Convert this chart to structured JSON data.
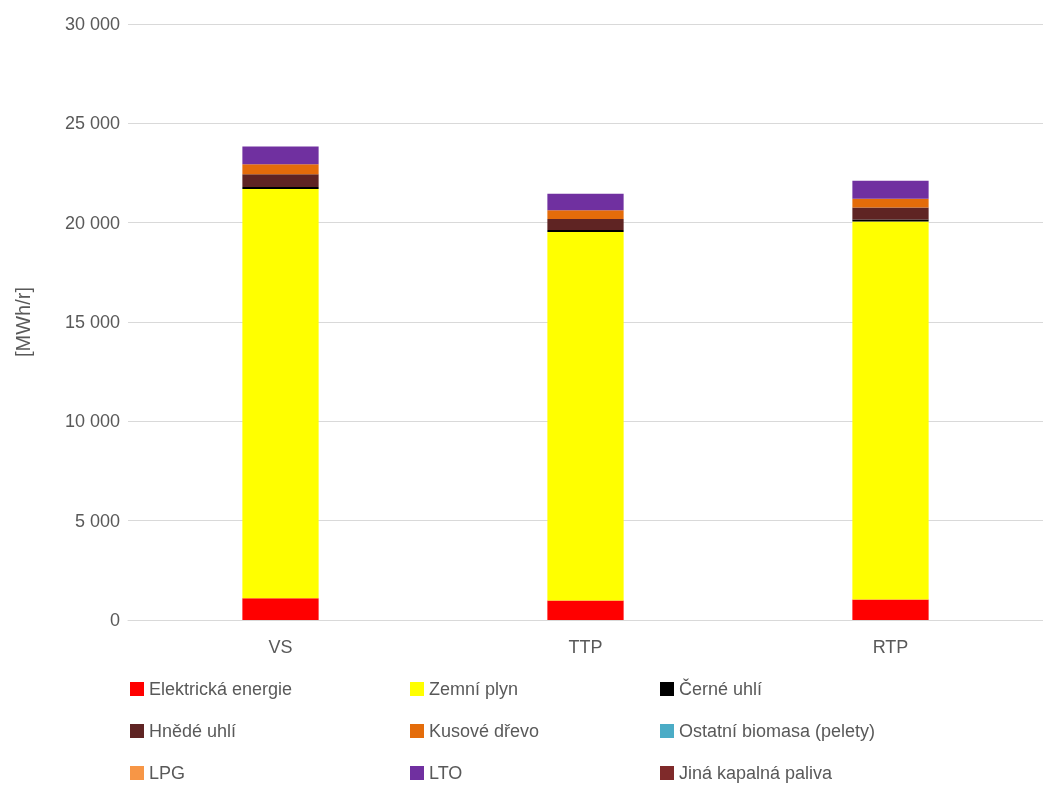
{
  "chart_data": {
    "type": "bar",
    "stacked": true,
    "ylabel": "[MWh/r]",
    "categories": [
      "VS",
      "TTP",
      "RTP"
    ],
    "series": [
      {
        "name": "Elektrická energie",
        "color": "#ff0000",
        "values": [
          1100,
          980,
          1030
        ]
      },
      {
        "name": "Zemní plyn",
        "color": "#ffff00",
        "values": [
          20590,
          18550,
          19030
        ]
      },
      {
        "name": "Černé uhlí",
        "color": "#000000",
        "values": [
          100,
          100,
          100
        ]
      },
      {
        "name": "Hnědé uhlí",
        "color": "#5f2423",
        "values": [
          650,
          550,
          600
        ]
      },
      {
        "name": "Kusové dřevo",
        "color": "#e46c0a",
        "values": [
          500,
          450,
          440
        ]
      },
      {
        "name": "Ostatní biomasa (pelety)",
        "color": "#4bacc6",
        "values": [
          0,
          0,
          0
        ]
      },
      {
        "name": "LPG",
        "color": "#f79646",
        "values": [
          0,
          0,
          0
        ]
      },
      {
        "name": "LTO",
        "color": "#7030a0",
        "values": [
          900,
          820,
          910
        ]
      },
      {
        "name": "Jiná kapalná paliva",
        "color": "#7f2a2a",
        "values": [
          0,
          0,
          0
        ]
      }
    ],
    "ylim": [
      0,
      30000
    ],
    "yticks": [
      0,
      {
        "value": 5000,
        "label": "5 000"
      },
      {
        "value": 10000,
        "label": "10 000"
      },
      {
        "value": 15000,
        "label": "15 000"
      },
      {
        "value": 20000,
        "label": "20 000"
      },
      {
        "value": 25000,
        "label": "25 000"
      },
      {
        "value": 30000,
        "label": "30 000"
      }
    ],
    "grid": "y",
    "legend": "bottom"
  }
}
